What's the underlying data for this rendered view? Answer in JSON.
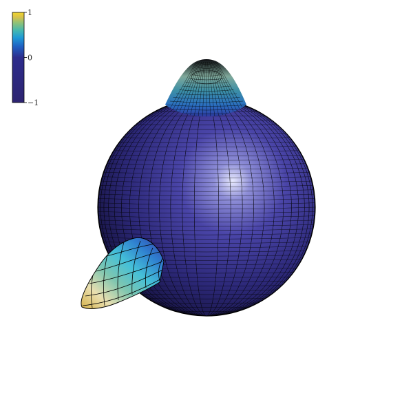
{
  "colorbar": {
    "ticks": [
      {
        "value": 1,
        "label": "1"
      },
      {
        "value": 0,
        "label": "0"
      },
      {
        "value": -1,
        "label": "−1"
      }
    ],
    "range": [
      -1,
      1
    ],
    "colormap": [
      "#2d2470",
      "#2d2c8c",
      "#1f5fc2",
      "#1f9ad6",
      "#45b8b0",
      "#8cc27a",
      "#d9c24a",
      "#f2d72a"
    ]
  },
  "surface": {
    "body_color": "#2e2a6e",
    "highlight_color": "#d8dcff",
    "mesh_color": "#000000",
    "colored_regions": [
      "top-lobe",
      "lower-left-lobe"
    ]
  }
}
